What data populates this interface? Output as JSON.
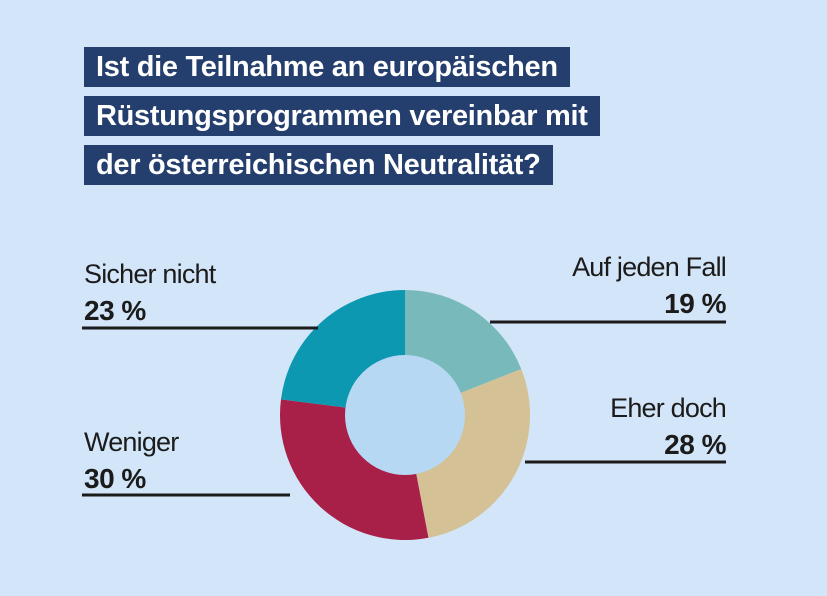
{
  "title_lines": [
    "Ist die Teilnahme an europäischen",
    "Rüstungsprogrammen vereinbar mit",
    "der österreichischen Neutralität?"
  ],
  "colors": {
    "background": "#d3e5f8",
    "title_bg": "#243e6d",
    "title_text": "#ffffff",
    "center_hole": "#b7d8f2",
    "label_text": "#1b1b1b"
  },
  "chart_data": {
    "type": "pie",
    "donut": true,
    "title": "Ist die Teilnahme an europäischen Rüstungsprogrammen vereinbar mit der österreichischen Neutralität?",
    "unit": "%",
    "slices": [
      {
        "key": "auf-jeden-fall",
        "label": "Auf jeden Fall",
        "value": 19,
        "value_label": "19 %",
        "color": "#78b9bb",
        "side": "right"
      },
      {
        "key": "eher-doch",
        "label": "Eher doch",
        "value": 28,
        "value_label": "28 %",
        "color": "#d4c196",
        "side": "right"
      },
      {
        "key": "weniger",
        "label": "Weniger",
        "value": 30,
        "value_label": "30 %",
        "color": "#a81f48",
        "side": "left"
      },
      {
        "key": "sicher-nicht",
        "label": "Sicher nicht",
        "value": 23,
        "value_label": "23 %",
        "color": "#0b98b0",
        "side": "left"
      }
    ],
    "legend": "labels outside with leader lines"
  }
}
